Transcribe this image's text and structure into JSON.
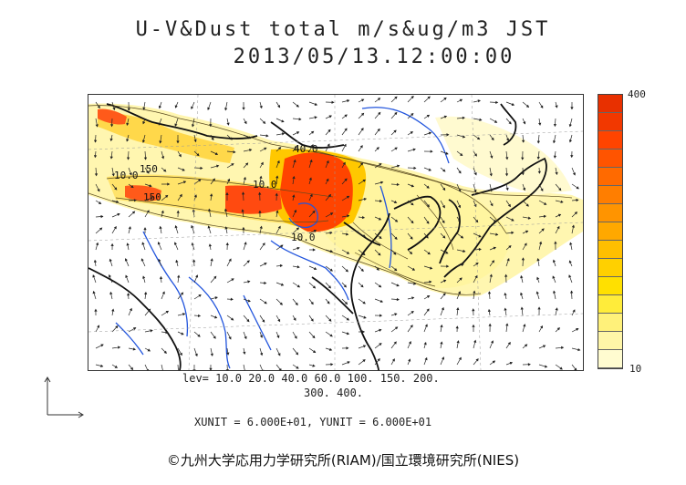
{
  "title": {
    "line1": "U-V&Dust total m/s&ug/m3 JST",
    "line2": "2013/05/13.12:00:00"
  },
  "legend": {
    "max_label": "400",
    "min_label": "10",
    "colors": [
      "#fffcd0",
      "#fff6a8",
      "#fff17a",
      "#ffec3a",
      "#ffe000",
      "#ffd000",
      "#ffbf00",
      "#ffa800",
      "#ff9400",
      "#ff7e00",
      "#ff6a00",
      "#ff5400",
      "#ff4400",
      "#f23800",
      "#e83000"
    ]
  },
  "levels_text": {
    "line1": "lev= 10.0 20.0 40.0 60.0 100. 150. 200.",
    "line2": "300. 400."
  },
  "units_text": "XUNIT = 6.000E+01, YUNIT = 6.000E+01",
  "copyright": "©九州大学応用力学研究所(RIAM)/国立環境研究所(NIES)",
  "contour_labels": [
    "10.0",
    "150",
    "150",
    "10.0",
    "40.0",
    "10.0"
  ],
  "colors": {
    "coast": "#111111",
    "river": "#2255dd",
    "border": "#333333",
    "arrow": "#222222"
  }
}
